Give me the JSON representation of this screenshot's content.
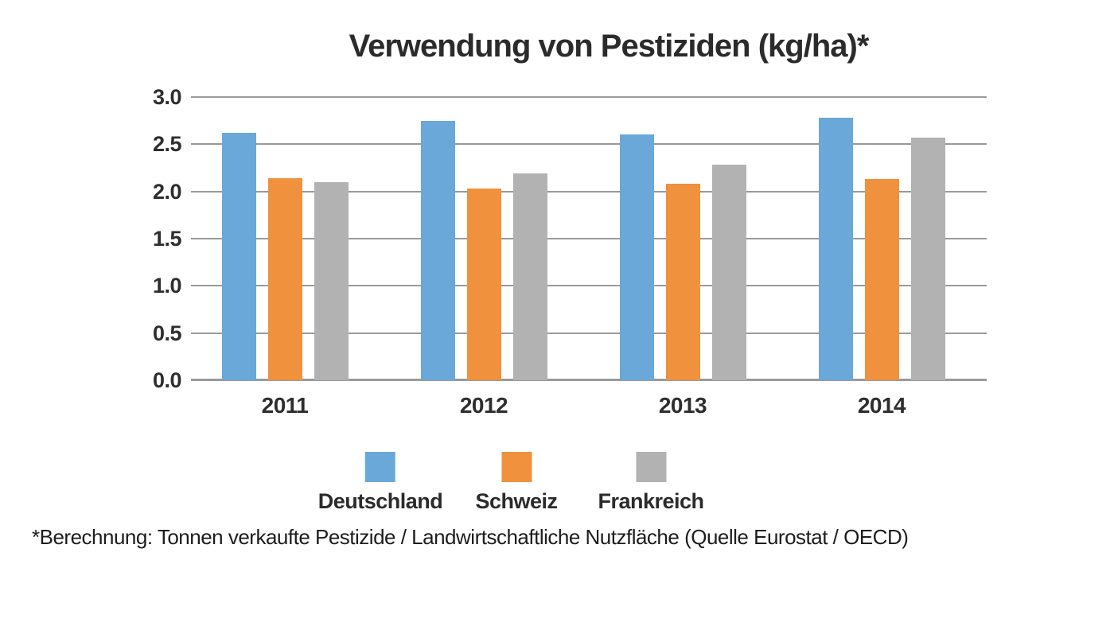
{
  "chart": {
    "title": "Verwendung von Pestiziden (kg/ha)*",
    "footnote": "*Berechnung: Tonnen verkaufte Pestizide / Landwirtschaftliche Nutzfläche (Quelle Eurostat / OECD)"
  },
  "chart_data": {
    "type": "bar",
    "title": "Verwendung von Pestiziden (kg/ha)*",
    "categories": [
      "2011",
      "2012",
      "2013",
      "2014"
    ],
    "series": [
      {
        "name": "Deutschland",
        "color": "#69a8d8",
        "values": [
          2.62,
          2.75,
          2.6,
          2.78
        ]
      },
      {
        "name": "Schweiz",
        "color": "#f0913e",
        "values": [
          2.14,
          2.03,
          2.08,
          2.13
        ]
      },
      {
        "name": "Frankreich",
        "color": "#b2b2b2",
        "values": [
          2.1,
          2.19,
          2.28,
          2.57
        ]
      }
    ],
    "xlabel": "",
    "ylabel": "",
    "ylim": [
      0.0,
      3.0
    ],
    "yticks": [
      0.0,
      0.5,
      1.0,
      1.5,
      2.0,
      2.5,
      3.0
    ],
    "ytick_labels": [
      "0.0",
      "0.5",
      "1.0",
      "1.5",
      "2.0",
      "2.5",
      "3.0"
    ],
    "grid": true,
    "legend_position": "bottom",
    "footnote": "*Berechnung: Tonnen verkaufte Pestizide / Landwirtschaftliche Nutzfläche (Quelle Eurostat / OECD)"
  },
  "style": {
    "gridline_color": "#9a9a9a",
    "axis_text_color": "#2e2e2e",
    "title_color": "#2b2b2b"
  }
}
